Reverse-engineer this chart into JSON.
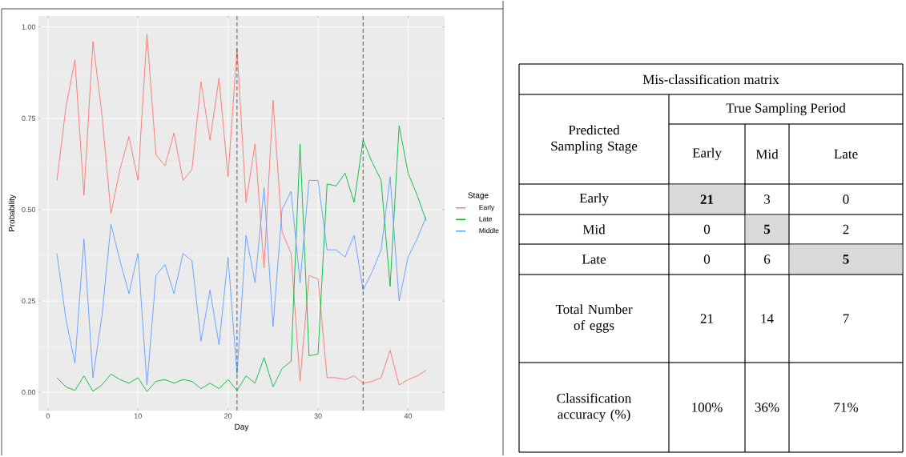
{
  "chart_data": [
    {
      "type": "line",
      "xlabel": "Day",
      "ylabel": "Probability",
      "legend_title": "Stage",
      "legend": "right",
      "grid": true,
      "x": [
        1,
        2,
        3,
        4,
        5,
        6,
        7,
        8,
        9,
        10,
        11,
        12,
        13,
        14,
        15,
        16,
        17,
        18,
        19,
        20,
        21,
        22,
        23,
        24,
        25,
        26,
        27,
        28,
        29,
        30,
        31,
        32,
        33,
        34,
        35,
        36,
        37,
        38,
        39,
        40,
        41,
        42
      ],
      "xlim": [
        -1.05,
        44.05
      ],
      "ylim": [
        -0.05,
        1.03
      ],
      "xticks": [
        0,
        10,
        20,
        30,
        40
      ],
      "yticks": [
        {
          "value": 0,
          "label": "0.00"
        },
        {
          "value": 0.25,
          "label": "0.25"
        },
        {
          "value": 0.5,
          "label": "0.50"
        },
        {
          "value": 0.75,
          "label": "0.75"
        },
        {
          "value": 1,
          "label": "1.00"
        }
      ],
      "series": [
        {
          "name": "Early",
          "color": "#f8766d",
          "values": [
            0.58,
            0.78,
            0.91,
            0.54,
            0.96,
            0.76,
            0.49,
            0.61,
            0.7,
            0.58,
            0.98,
            0.65,
            0.62,
            0.71,
            0.58,
            0.61,
            0.85,
            0.69,
            0.86,
            0.59,
            0.94,
            0.52,
            0.68,
            0.34,
            0.8,
            0.44,
            0.38,
            0.03,
            0.32,
            0.31,
            0.04,
            0.04,
            0.035,
            0.045,
            0.025,
            0.03,
            0.04,
            0.115,
            0.02,
            0.035,
            0.045,
            0.06
          ]
        },
        {
          "name": "Late",
          "color": "#00ba38",
          "values": [
            0.04,
            0.015,
            0.005,
            0.045,
            0.003,
            0.02,
            0.05,
            0.035,
            0.025,
            0.04,
            0.002,
            0.03,
            0.035,
            0.025,
            0.035,
            0.03,
            0.01,
            0.025,
            0.01,
            0.035,
            0.005,
            0.045,
            0.025,
            0.095,
            0.015,
            0.065,
            0.085,
            0.68,
            0.1,
            0.105,
            0.57,
            0.565,
            0.6,
            0.52,
            0.69,
            0.63,
            0.58,
            0.29,
            0.73,
            0.6,
            0.54,
            0.47
          ]
        },
        {
          "name": "Middle",
          "color": "#619cff",
          "values": [
            0.38,
            0.2,
            0.08,
            0.42,
            0.04,
            0.21,
            0.46,
            0.36,
            0.27,
            0.38,
            0.02,
            0.32,
            0.35,
            0.27,
            0.38,
            0.36,
            0.14,
            0.28,
            0.13,
            0.37,
            0.05,
            0.43,
            0.3,
            0.56,
            0.18,
            0.5,
            0.55,
            0.3,
            0.58,
            0.58,
            0.39,
            0.39,
            0.37,
            0.43,
            0.28,
            0.33,
            0.39,
            0.59,
            0.25,
            0.37,
            0.42,
            0.48
          ]
        }
      ],
      "ref_lines": [
        {
          "axis": "x",
          "value": 21,
          "line_style": "dashed"
        },
        {
          "axis": "x",
          "value": 35,
          "line_style": "dashed"
        }
      ]
    },
    {
      "type": "other",
      "title": "Mis-classification matrix",
      "annotations": [
        "Predicted Sampling Stage",
        "True Sampling Period",
        "Early",
        "Mid",
        "Late",
        "Early",
        "21",
        "3",
        "0",
        "Mid",
        "0",
        "5",
        "2",
        "Late",
        "0",
        "6",
        "5",
        "Total Number of eggs",
        "21",
        "14",
        "7",
        "Classification accuracy (%)",
        "100%",
        "36%",
        "71%"
      ]
    }
  ]
}
